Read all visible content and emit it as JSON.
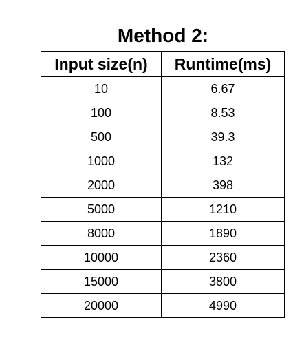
{
  "title": "Method 2:",
  "table": {
    "headers": [
      "Input size(n)",
      "Runtime(ms)"
    ],
    "rows": [
      [
        "10",
        "6.67"
      ],
      [
        "100",
        "8.53"
      ],
      [
        "500",
        "39.3"
      ],
      [
        "1000",
        "132"
      ],
      [
        "2000",
        "398"
      ],
      [
        "5000",
        "1210"
      ],
      [
        "8000",
        "1890"
      ],
      [
        "10000",
        "2360"
      ],
      [
        "15000",
        "3800"
      ],
      [
        "20000",
        "4990"
      ]
    ]
  }
}
